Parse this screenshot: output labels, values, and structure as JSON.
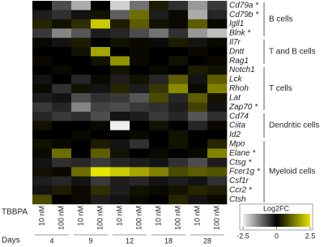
{
  "chart_data": {
    "type": "heatmap",
    "x_label": "TBBPA",
    "columns": [
      "10 nM",
      "100 nM",
      "10 nM",
      "100 nM",
      "10 nM",
      "100 nM",
      "10 nM",
      "100 nM",
      "10 nM",
      "100 nM"
    ],
    "days_label": "Days",
    "days": [
      4,
      9,
      12,
      18,
      28
    ],
    "groups": [
      {
        "label": "B cells",
        "rows": [
          "Cd79a *",
          "Cd79b *",
          "Igll1",
          "Blnk *"
        ],
        "values": [
          [
            0,
            -0.8,
            -1.8,
            0,
            -2.2,
            -1.2,
            0.3,
            -0.5,
            -1.6,
            -0.6
          ],
          [
            -0.3,
            -0.5,
            -0.2,
            0.2,
            -1.0,
            1.2,
            -0.3,
            0.1,
            -1.8,
            -0.4
          ],
          [
            0.4,
            0.2,
            0.5,
            2.2,
            0.3,
            1.0,
            0.2,
            0.1,
            1.0,
            0.1
          ],
          [
            -0.6,
            -1.4,
            -0.9,
            -0.3,
            -0.4,
            -0.8,
            -1.2,
            -0.5,
            -1.6,
            -2.0
          ]
        ]
      },
      {
        "label": "T and B cells",
        "rows": [
          "Il7r",
          "Dntt",
          "Rag1"
        ],
        "values": [
          [
            0.1,
            -0.2,
            0.3,
            0,
            0.2,
            0.1,
            -0.1,
            0.3,
            -0.2,
            0.1
          ],
          [
            0,
            0,
            0.2,
            1.8,
            0,
            0.1,
            0,
            0,
            0.1,
            0
          ],
          [
            0.1,
            0,
            0,
            0.2,
            1.6,
            0.1,
            0,
            0.2,
            0,
            0.1
          ]
        ]
      },
      {
        "label": "T cells",
        "rows": [
          "Notch1",
          "Lck",
          "Rhoh",
          "Lat",
          "Zap70 *"
        ],
        "values": [
          [
            0,
            0.1,
            0,
            0,
            0.2,
            0,
            0.1,
            0,
            0.3,
            0.2
          ],
          [
            -0.2,
            0,
            -0.4,
            0.1,
            -0.3,
            0.2,
            -0.4,
            1.0,
            -0.2,
            1.0
          ],
          [
            0.1,
            -0.5,
            0.2,
            -0.2,
            0.4,
            -0.3,
            0.6,
            1.5,
            0.1,
            1.4
          ],
          [
            -0.3,
            -0.2,
            -0.8,
            -0.5,
            -0.6,
            -0.9,
            0.8,
            -0.4,
            1.0,
            0.2
          ],
          [
            -0.6,
            -0.4,
            -1.4,
            -0.7,
            -0.8,
            -0.6,
            -0.5,
            -0.3,
            0.7,
            -0.2
          ]
        ]
      },
      {
        "label": "Dendritic cells",
        "rows": [
          "Cd74",
          "Ciita",
          "Id2"
        ],
        "values": [
          [
            -0.4,
            -0.6,
            -0.5,
            -0.8,
            -0.2,
            -0.3,
            -0.6,
            -0.4,
            -0.9,
            -0.5
          ],
          [
            0.2,
            0,
            0,
            0.1,
            -2.5,
            0,
            0.2,
            0,
            -0.4,
            0.1
          ],
          [
            0,
            0,
            0.1,
            0,
            0,
            0.1,
            0,
            0.2,
            0,
            0
          ]
        ]
      },
      {
        "label": "Myeloid cells",
        "rows": [
          "Mpo",
          "Elane *",
          "Ctsg *",
          "Fcer1g *",
          "Csf1r",
          "Ccr2 *",
          "Ctsh"
        ],
        "values": [
          [
            0.2,
            0.1,
            0,
            0.3,
            -0.2,
            -0.5,
            0,
            0.2,
            0,
            0.4
          ],
          [
            0.1,
            1.2,
            0,
            1.0,
            0.2,
            0,
            0.1,
            0,
            0.1,
            1.4
          ],
          [
            -0.2,
            -0.5,
            -0.4,
            -0.6,
            -0.4,
            -0.3,
            -0.2,
            -0.5,
            -0.8,
            -0.3
          ],
          [
            0.2,
            0.1,
            1.2,
            2.5,
            2.2,
            1.8,
            1.4,
            0.8,
            1.0,
            0.9
          ],
          [
            -0.3,
            -0.4,
            -0.2,
            -0.6,
            -0.3,
            -0.4,
            -0.2,
            -0.3,
            -0.2,
            -0.5
          ],
          [
            -0.2,
            0.3,
            0.1,
            0.5,
            -0.3,
            0.2,
            0.1,
            0.2,
            0.4,
            0.3
          ],
          [
            0.8,
            0,
            0.1,
            -0.3,
            -0.2,
            0.1,
            0,
            0.4,
            -0.2,
            0.1
          ]
        ]
      }
    ],
    "legend_title": "Log2FC",
    "zlim": [
      -2.5,
      2.5
    ],
    "zticks": [
      -2.5,
      0,
      2.5
    ],
    "colors": [
      "#eeeeee",
      "#000000",
      "#e6e600"
    ]
  }
}
